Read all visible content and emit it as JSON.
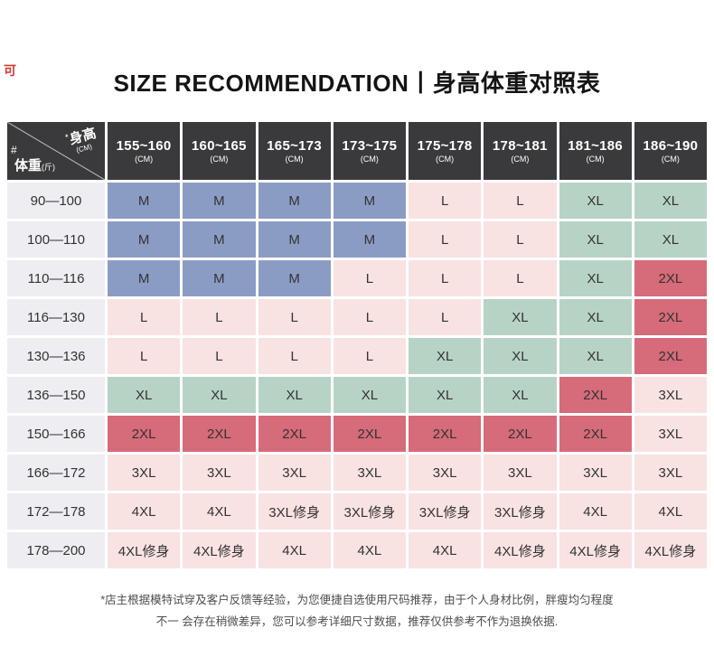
{
  "page": {
    "title": "SIZE RECOMMENDATION丨身高体重对照表",
    "corner_mark": "可"
  },
  "colors": {
    "blue": "#8b9cc4",
    "pink": "#f9e2e2",
    "green": "#b7d3c6",
    "red": "#d66b79",
    "header_bg": "#3a3a3c",
    "weight_bg": "#eeedf2",
    "cell_text": "#333333",
    "accent_red": "#cf3b34"
  },
  "table": {
    "corner": {
      "hash": "#",
      "star": "*",
      "height_label": "身高",
      "height_unit": "(CM)",
      "weight_label": "体重",
      "weight_unit": "(斤)"
    }
  },
  "chart_data": {
    "type": "table",
    "title": "SIZE RECOMMENDATION丨身高体重对照表",
    "col_headers": [
      {
        "range": "155~160",
        "unit": "(CM)"
      },
      {
        "range": "160~165",
        "unit": "(CM)"
      },
      {
        "range": "165~173",
        "unit": "(CM)"
      },
      {
        "range": "173~175",
        "unit": "(CM)"
      },
      {
        "range": "175~178",
        "unit": "(CM)"
      },
      {
        "range": "178~181",
        "unit": "(CM)"
      },
      {
        "range": "181~186",
        "unit": "(CM)"
      },
      {
        "range": "186~190",
        "unit": "(CM)"
      }
    ],
    "row_headers": [
      "90—100",
      "100—110",
      "110—116",
      "116—130",
      "130—136",
      "136—150",
      "150—166",
      "166—172",
      "172—178",
      "178—200"
    ],
    "cells": [
      [
        "M",
        "M",
        "M",
        "M",
        "L",
        "L",
        "XL",
        "XL"
      ],
      [
        "M",
        "M",
        "M",
        "M",
        "L",
        "L",
        "XL",
        "XL"
      ],
      [
        "M",
        "M",
        "M",
        "L",
        "L",
        "L",
        "XL",
        "2XL"
      ],
      [
        "L",
        "L",
        "L",
        "L",
        "L",
        "XL",
        "XL",
        "2XL"
      ],
      [
        "L",
        "L",
        "L",
        "L",
        "XL",
        "XL",
        "XL",
        "2XL"
      ],
      [
        "XL",
        "XL",
        "XL",
        "XL",
        "XL",
        "XL",
        "2XL",
        "3XL"
      ],
      [
        "2XL",
        "2XL",
        "2XL",
        "2XL",
        "2XL",
        "2XL",
        "2XL",
        "3XL"
      ],
      [
        "3XL",
        "3XL",
        "3XL",
        "3XL",
        "3XL",
        "3XL",
        "3XL",
        "3XL"
      ],
      [
        "4XL",
        "4XL",
        "3XL修身",
        "3XL修身",
        "3XL修身",
        "3XL修身",
        "4XL",
        "4XL"
      ],
      [
        "4XL修身",
        "4XL修身",
        "4XL",
        "4XL",
        "4XL",
        "4XL修身",
        "4XL修身",
        "4XL修身"
      ]
    ],
    "cell_colors": [
      [
        "blue",
        "blue",
        "blue",
        "blue",
        "pink",
        "pink",
        "green",
        "green"
      ],
      [
        "blue",
        "blue",
        "blue",
        "blue",
        "pink",
        "pink",
        "green",
        "green"
      ],
      [
        "blue",
        "blue",
        "blue",
        "pink",
        "pink",
        "pink",
        "green",
        "red"
      ],
      [
        "pink",
        "pink",
        "pink",
        "pink",
        "pink",
        "green",
        "green",
        "red"
      ],
      [
        "pink",
        "pink",
        "pink",
        "pink",
        "green",
        "green",
        "green",
        "red"
      ],
      [
        "green",
        "green",
        "green",
        "green",
        "green",
        "green",
        "red",
        "pink"
      ],
      [
        "red",
        "red",
        "red",
        "red",
        "red",
        "red",
        "red",
        "pink"
      ],
      [
        "pink",
        "pink",
        "pink",
        "pink",
        "pink",
        "pink",
        "pink",
        "pink"
      ],
      [
        "pink",
        "pink",
        "pink",
        "pink",
        "pink",
        "pink",
        "pink",
        "pink"
      ],
      [
        "pink",
        "pink",
        "pink",
        "pink",
        "pink",
        "pink",
        "pink",
        "pink"
      ]
    ]
  },
  "footer": {
    "line1": "*店主根据模特试穿及客户反馈等经验，为您便捷自选使用尺码推荐，由于个人身材比例，胖瘦均匀程度",
    "line2": "不一 会存在稍微差异，您可以参考详细尺寸数据，推荐仅供参考不作为退换依据."
  }
}
